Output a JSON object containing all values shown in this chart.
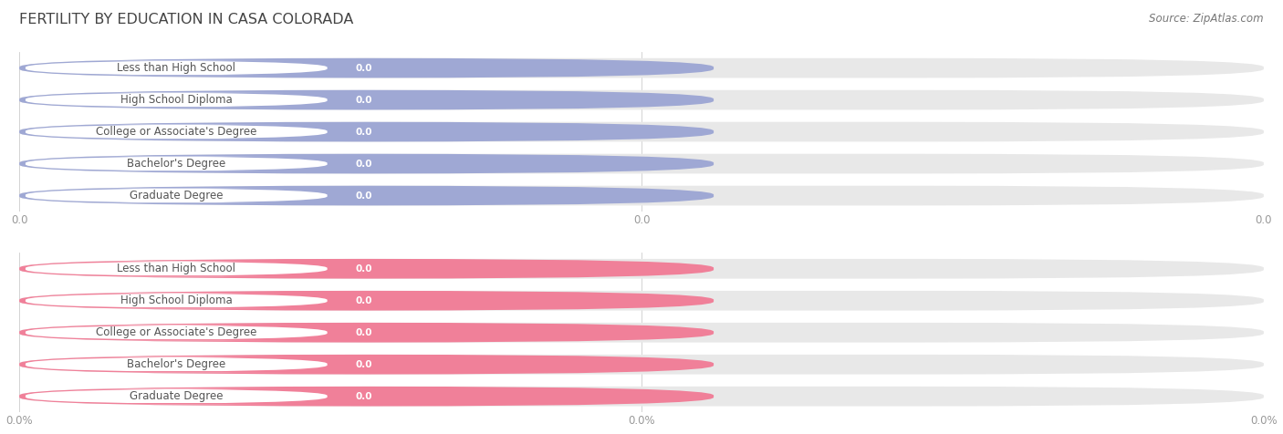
{
  "title": "FERTILITY BY EDUCATION IN CASA COLORADA",
  "source": "Source: ZipAtlas.com",
  "categories": [
    "Less than High School",
    "High School Diploma",
    "College or Associate's Degree",
    "Bachelor's Degree",
    "Graduate Degree"
  ],
  "top_values": [
    0.0,
    0.0,
    0.0,
    0.0,
    0.0
  ],
  "bottom_values": [
    0.0,
    0.0,
    0.0,
    0.0,
    0.0
  ],
  "top_color": "#9fa8d4",
  "bottom_color": "#f08099",
  "bar_bg_color": "#e8e8e8",
  "top_tick_labels": [
    "0.0",
    "0.0",
    "0.0"
  ],
  "bottom_tick_labels": [
    "0.0%",
    "0.0%",
    "0.0%"
  ],
  "title_fontsize": 11.5,
  "label_fontsize": 8.5,
  "value_fontsize": 7.5,
  "tick_fontsize": 8.5,
  "source_fontsize": 8.5,
  "fig_width": 14.06,
  "fig_height": 4.76,
  "title_color": "#444444",
  "tick_color": "#999999",
  "source_color": "#777777",
  "background_color": "#ffffff",
  "white_label_color": "#ffffff",
  "value_text_color": "#ffffff",
  "label_text_color": "#555555"
}
